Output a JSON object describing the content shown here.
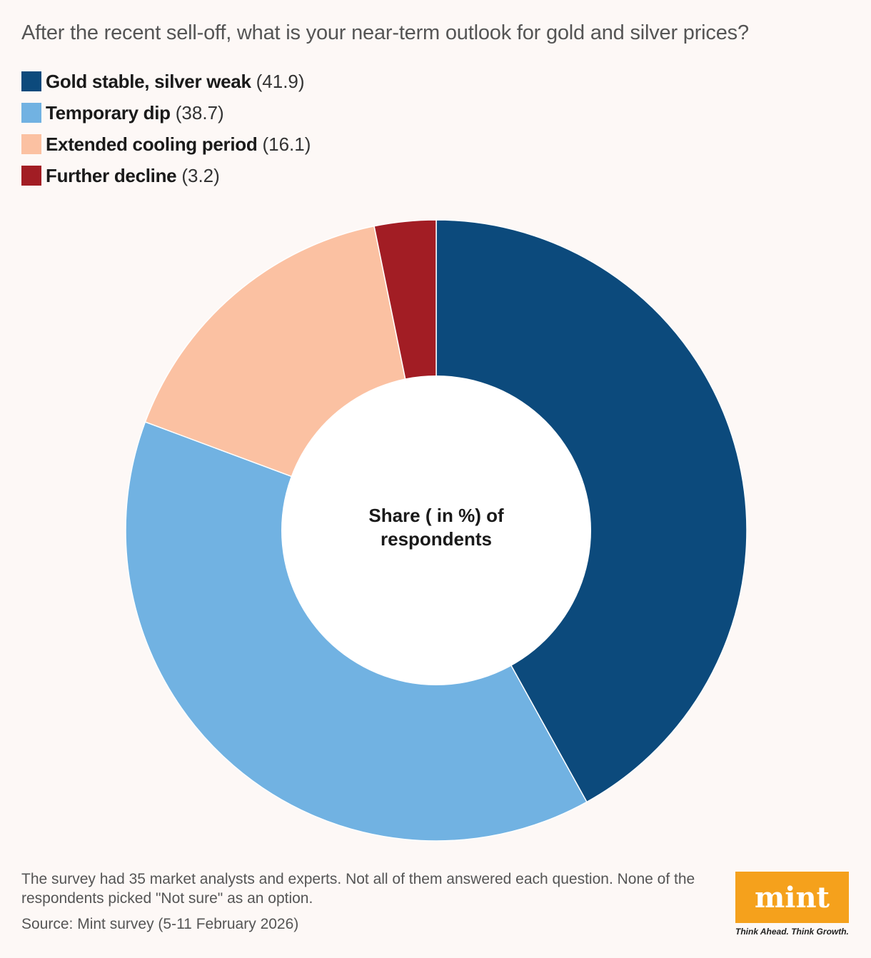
{
  "title": "After the recent sell-off, what is your near-term outlook for gold and silver prices?",
  "center_label_line1": "Share ( in %) of",
  "center_label_line2": "respondents",
  "chart_data": {
    "type": "pie",
    "title": "After the recent sell-off, what is your near-term outlook for gold and silver prices?",
    "center_text": "Share ( in %) of respondents",
    "legend_position": "top-left",
    "categories": [
      "Gold stable, silver weak",
      "Temporary dip",
      "Extended cooling period",
      "Further decline"
    ],
    "values": [
      41.9,
      38.7,
      16.1,
      3.2
    ],
    "value_labels": [
      "(41.9)",
      "(38.7)",
      "(16.1)",
      "(3.2)"
    ],
    "colors": [
      "#0c4a7c",
      "#71b2e2",
      "#fbc1a2",
      "#a21d24"
    ]
  },
  "note": "The survey had 35 market analysts and experts. Not all of them answered each question. None of the respondents picked \"Not sure\" as an option.",
  "source": "Source: Mint survey (5-11 February 2026)",
  "logo": {
    "text": "mint",
    "tagline": "Think Ahead. Think Growth.",
    "color": "#f5a11c"
  }
}
